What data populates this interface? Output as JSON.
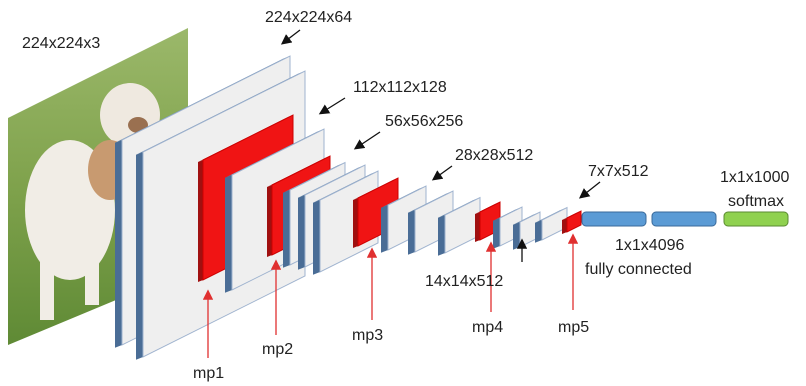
{
  "input_label": "224x224x3",
  "conv_labels": [
    "224x224x64",
    "112x112x128",
    "56x56x256",
    "28x28x512",
    "14x14x512",
    "7x7x512"
  ],
  "fc_label": "1x1x4096",
  "fc_caption": "fully connected",
  "output_label": "1x1x1000",
  "output_caption": "softmax",
  "pool_labels": [
    "mp1",
    "mp2",
    "mp3",
    "mp4",
    "mp5"
  ]
}
